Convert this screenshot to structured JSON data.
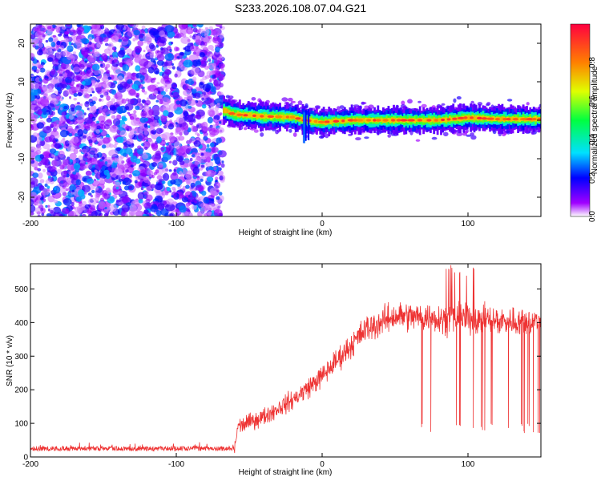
{
  "title": "S233.2026.108.07.04.G21",
  "chart_data": [
    {
      "type": "heatmap",
      "xlabel": "Height of straight line (km)",
      "ylabel": "Frequency (Hz)",
      "xlim": [
        -200,
        150
      ],
      "ylim": [
        -25,
        25
      ],
      "xticks": [
        -200,
        -100,
        0,
        100
      ],
      "yticks": [
        -20,
        -10,
        0,
        10,
        20
      ],
      "colorbar": {
        "label": "Normalized spectral amplitude",
        "range": [
          0,
          1
        ],
        "ticks": [
          0.0,
          0.2,
          0.4,
          0.6,
          0.8
        ],
        "tick_labels": [
          "0.0",
          "0.2",
          "0.4",
          "0.6",
          "0.8"
        ]
      },
      "regions": [
        {
          "name": "noise",
          "x_range": [
            -200,
            -68
          ],
          "freq_range": [
            -25,
            25
          ],
          "amplitude": "random 0.1-0.3"
        },
        {
          "name": "signal",
          "x_range": [
            -68,
            150
          ],
          "freq_center": [
            {
              "x": -68,
              "f": 2.5
            },
            {
              "x": -60,
              "f": 1.5
            },
            {
              "x": -40,
              "f": 1.0
            },
            {
              "x": -20,
              "f": 0.8
            },
            {
              "x": -12,
              "f": 0.0
            },
            {
              "x": 0,
              "f": -0.5
            },
            {
              "x": 20,
              "f": 0.0
            },
            {
              "x": 50,
              "f": 0.0
            },
            {
              "x": 80,
              "f": 0.0
            },
            {
              "x": 100,
              "f": 0.7
            },
            {
              "x": 120,
              "f": 0.3
            },
            {
              "x": 150,
              "f": 0.3
            }
          ],
          "peak_amplitude": 0.95
        }
      ]
    },
    {
      "type": "line",
      "xlabel": "Height of straight line (km)",
      "ylabel": "SNR (10 * v/v)",
      "xlim": [
        -200,
        150
      ],
      "ylim": [
        0,
        575
      ],
      "xticks": [
        -200,
        -100,
        0,
        100
      ],
      "yticks": [
        0,
        100,
        200,
        300,
        400,
        500
      ],
      "color": "#ee3333",
      "envelope": [
        {
          "x": -200,
          "snr": 20
        },
        {
          "x": -60,
          "snr": 20
        },
        {
          "x": -58,
          "snr": 90
        },
        {
          "x": -40,
          "snr": 120
        },
        {
          "x": -20,
          "snr": 170
        },
        {
          "x": 0,
          "snr": 240
        },
        {
          "x": 15,
          "snr": 310
        },
        {
          "x": 30,
          "snr": 380
        },
        {
          "x": 50,
          "snr": 420
        },
        {
          "x": 100,
          "snr": 410
        },
        {
          "x": 150,
          "snr": 400
        }
      ],
      "noise_amplitude": 25,
      "dropout_range": [
        65,
        150
      ],
      "dropout_level": 85
    }
  ]
}
